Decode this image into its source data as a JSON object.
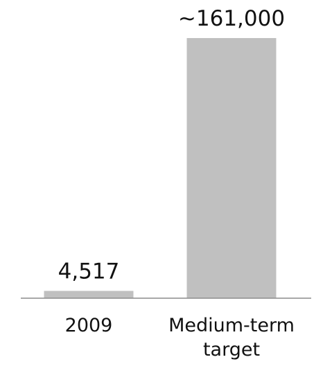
{
  "chart_data": {
    "type": "bar",
    "categories": [
      "2009",
      "Medium-term target"
    ],
    "category_label_lines": [
      [
        "2009"
      ],
      [
        "Medium-term",
        "target"
      ]
    ],
    "values": [
      4517,
      161000
    ],
    "data_labels": [
      "4,517",
      "~161,000"
    ],
    "title": "",
    "xlabel": "",
    "ylabel": "",
    "ylim": [
      0,
      161000
    ],
    "grid": false,
    "legend": "none",
    "colors": {
      "bar": "#c0c0c0",
      "baseline": "#8c8c8c",
      "text": "#111111"
    }
  }
}
